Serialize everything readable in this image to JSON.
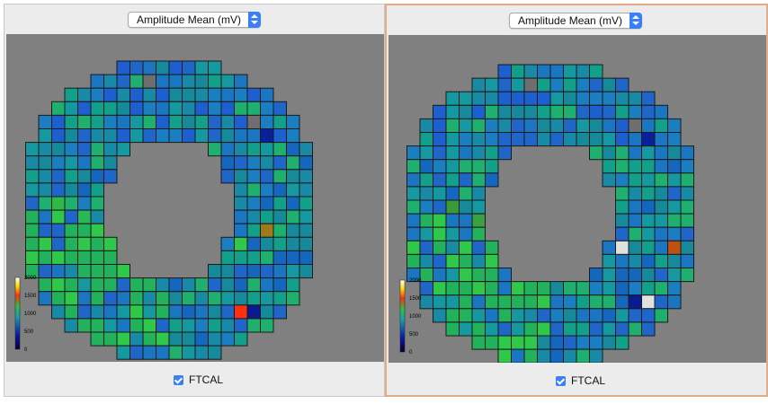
{
  "panels": [
    {
      "dropdown": {
        "selected": "Amplitude Mean (mV)"
      },
      "checkbox": {
        "label": "FTCAL",
        "checked": true
      }
    },
    {
      "dropdown": {
        "selected": "Amplitude Mean (mV)"
      },
      "checkbox": {
        "label": "FTCAL",
        "checked": true
      }
    }
  ],
  "colorbar": {
    "ticks": [
      "2000",
      "1500",
      "1000",
      "500",
      "0"
    ],
    "range": [
      0,
      2000
    ]
  },
  "colors": {
    "background": "#808080",
    "cell_border": "#1a1a1a",
    "checkbox": "#3b7ff5",
    "selected_panel_border": "#e3ab88"
  }
}
